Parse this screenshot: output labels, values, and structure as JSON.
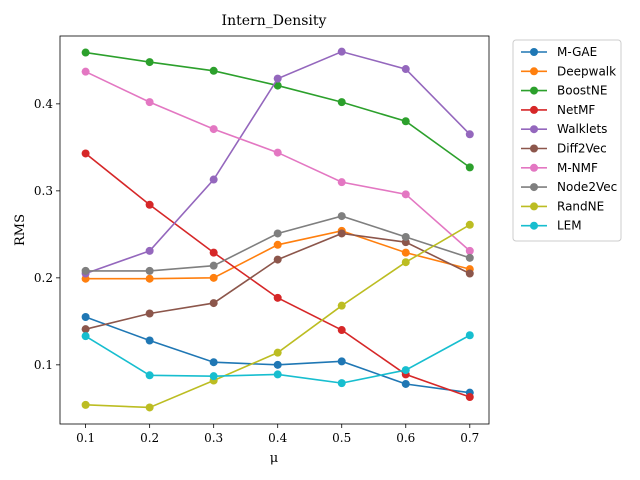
{
  "chart_data": {
    "type": "line",
    "title": "Intern_Density",
    "xlabel": "μ",
    "ylabel": "RMS",
    "x": [
      0.1,
      0.2,
      0.3,
      0.4,
      0.5,
      0.6,
      0.7
    ],
    "x_ticks": [
      "0.1",
      "0.2",
      "0.3",
      "0.4",
      "0.5",
      "0.6",
      "0.7"
    ],
    "y_ticks": [
      "0.1",
      "0.2",
      "0.3",
      "0.4"
    ],
    "y_tick_values": [
      0.1,
      0.2,
      0.3,
      0.4
    ],
    "xlim": [
      0.06,
      0.73
    ],
    "ylim": [
      0.032,
      0.478
    ],
    "grid": false,
    "legend_position": "outside-right-top",
    "series": [
      {
        "name": "M-GAE",
        "color": "#1f77b4",
        "values": [
          0.155,
          0.128,
          0.103,
          0.1,
          0.104,
          0.078,
          0.068
        ]
      },
      {
        "name": "Deepwalk",
        "color": "#ff7f0e",
        "values": [
          0.199,
          0.199,
          0.2,
          0.238,
          0.254,
          0.229,
          0.21
        ]
      },
      {
        "name": "BoostNE",
        "color": "#2ca02c",
        "values": [
          0.459,
          0.448,
          0.438,
          0.421,
          0.402,
          0.38,
          0.327
        ]
      },
      {
        "name": "NetMF",
        "color": "#d62728",
        "values": [
          0.343,
          0.284,
          0.229,
          0.177,
          0.14,
          0.089,
          0.063
        ]
      },
      {
        "name": "Walklets",
        "color": "#9467bd",
        "values": [
          0.205,
          0.231,
          0.313,
          0.429,
          0.46,
          0.44,
          0.365
        ]
      },
      {
        "name": "Diff2Vec",
        "color": "#8c564b",
        "values": [
          0.141,
          0.159,
          0.171,
          0.221,
          0.251,
          0.241,
          0.205
        ]
      },
      {
        "name": "M-NMF",
        "color": "#e377c2",
        "values": [
          0.437,
          0.402,
          0.371,
          0.344,
          0.31,
          0.296,
          0.231
        ]
      },
      {
        "name": "Node2Vec",
        "color": "#7f7f7f",
        "values": [
          0.208,
          0.208,
          0.214,
          0.251,
          0.271,
          0.247,
          0.223
        ]
      },
      {
        "name": "RandNE",
        "color": "#bcbd22",
        "values": [
          0.054,
          0.051,
          0.082,
          0.114,
          0.168,
          0.218,
          0.261
        ]
      },
      {
        "name": "LEM",
        "color": "#17becf",
        "values": [
          0.133,
          0.088,
          0.087,
          0.089,
          0.079,
          0.094,
          0.134
        ]
      }
    ]
  }
}
